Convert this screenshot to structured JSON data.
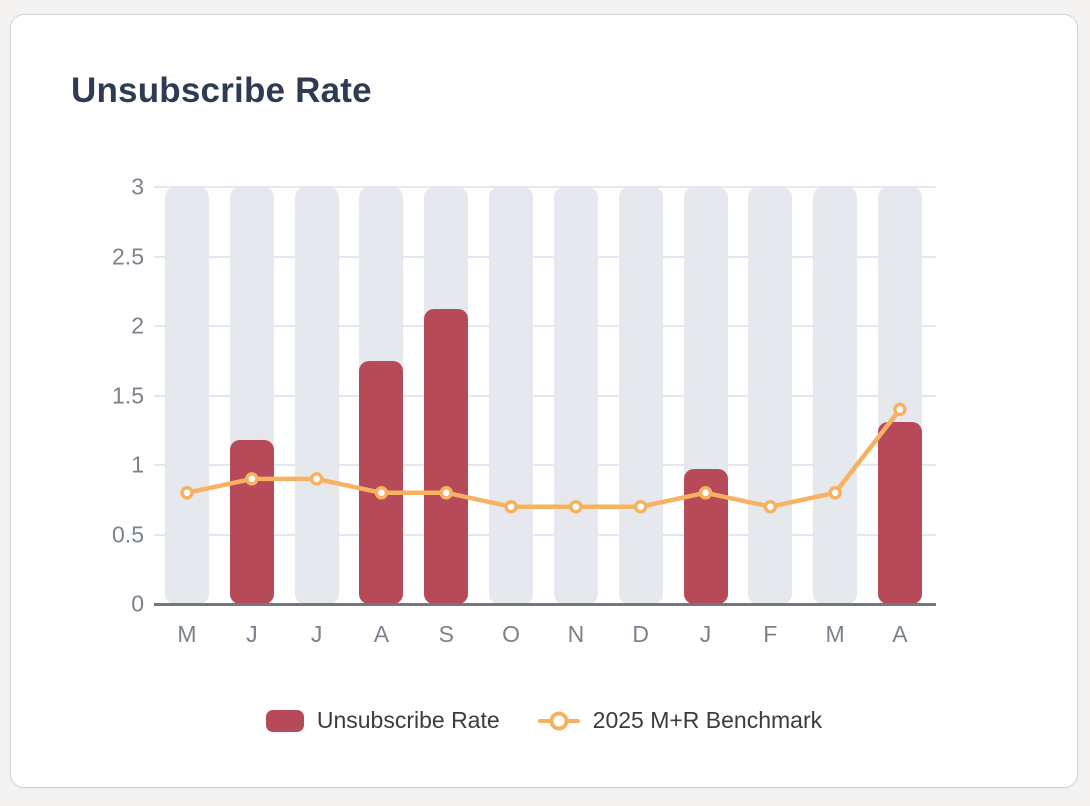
{
  "card": {
    "title": "Unsubscribe Rate"
  },
  "colors": {
    "page_bg": "#f4f3f1",
    "card_bg": "#ffffff",
    "card_border": "#ccd3da",
    "title_text": "#2e3b53",
    "axis_label": "#7b828c",
    "axis_line": "#74777e",
    "gridline": "#e3e7f1",
    "column_bg": "#e5e8ed",
    "bar": "#b74a58",
    "benchmark_line": "#f6b261",
    "legend_text": "#3c3c3c"
  },
  "chart_data": {
    "type": "bar",
    "title": "Unsubscribe Rate",
    "categories": [
      "M",
      "J",
      "J",
      "A",
      "S",
      "O",
      "N",
      "D",
      "J",
      "F",
      "M",
      "A"
    ],
    "series": [
      {
        "name": "Unsubscribe Rate",
        "type": "bar",
        "color": "#b74a58",
        "values": [
          0,
          1.18,
          0,
          1.75,
          2.12,
          0,
          0,
          0,
          0.97,
          0,
          0,
          1.31
        ]
      },
      {
        "name": "2025 M+R Benchmark",
        "type": "line",
        "color": "#f6b261",
        "values": [
          0.8,
          0.9,
          0.9,
          0.8,
          0.8,
          0.7,
          0.7,
          0.7,
          0.8,
          0.7,
          0.8,
          1.4
        ]
      }
    ],
    "xlabel": "",
    "ylabel": "",
    "ylim": [
      0,
      3
    ],
    "yticks": [
      0,
      0.5,
      1,
      1.5,
      2,
      2.5,
      3
    ],
    "grid": true,
    "legend_position": "bottom"
  },
  "legend": {
    "items": [
      {
        "label": "Unsubscribe Rate",
        "marker": "bar-swatch"
      },
      {
        "label": "2025 M+R Benchmark",
        "marker": "line-circle"
      }
    ]
  }
}
